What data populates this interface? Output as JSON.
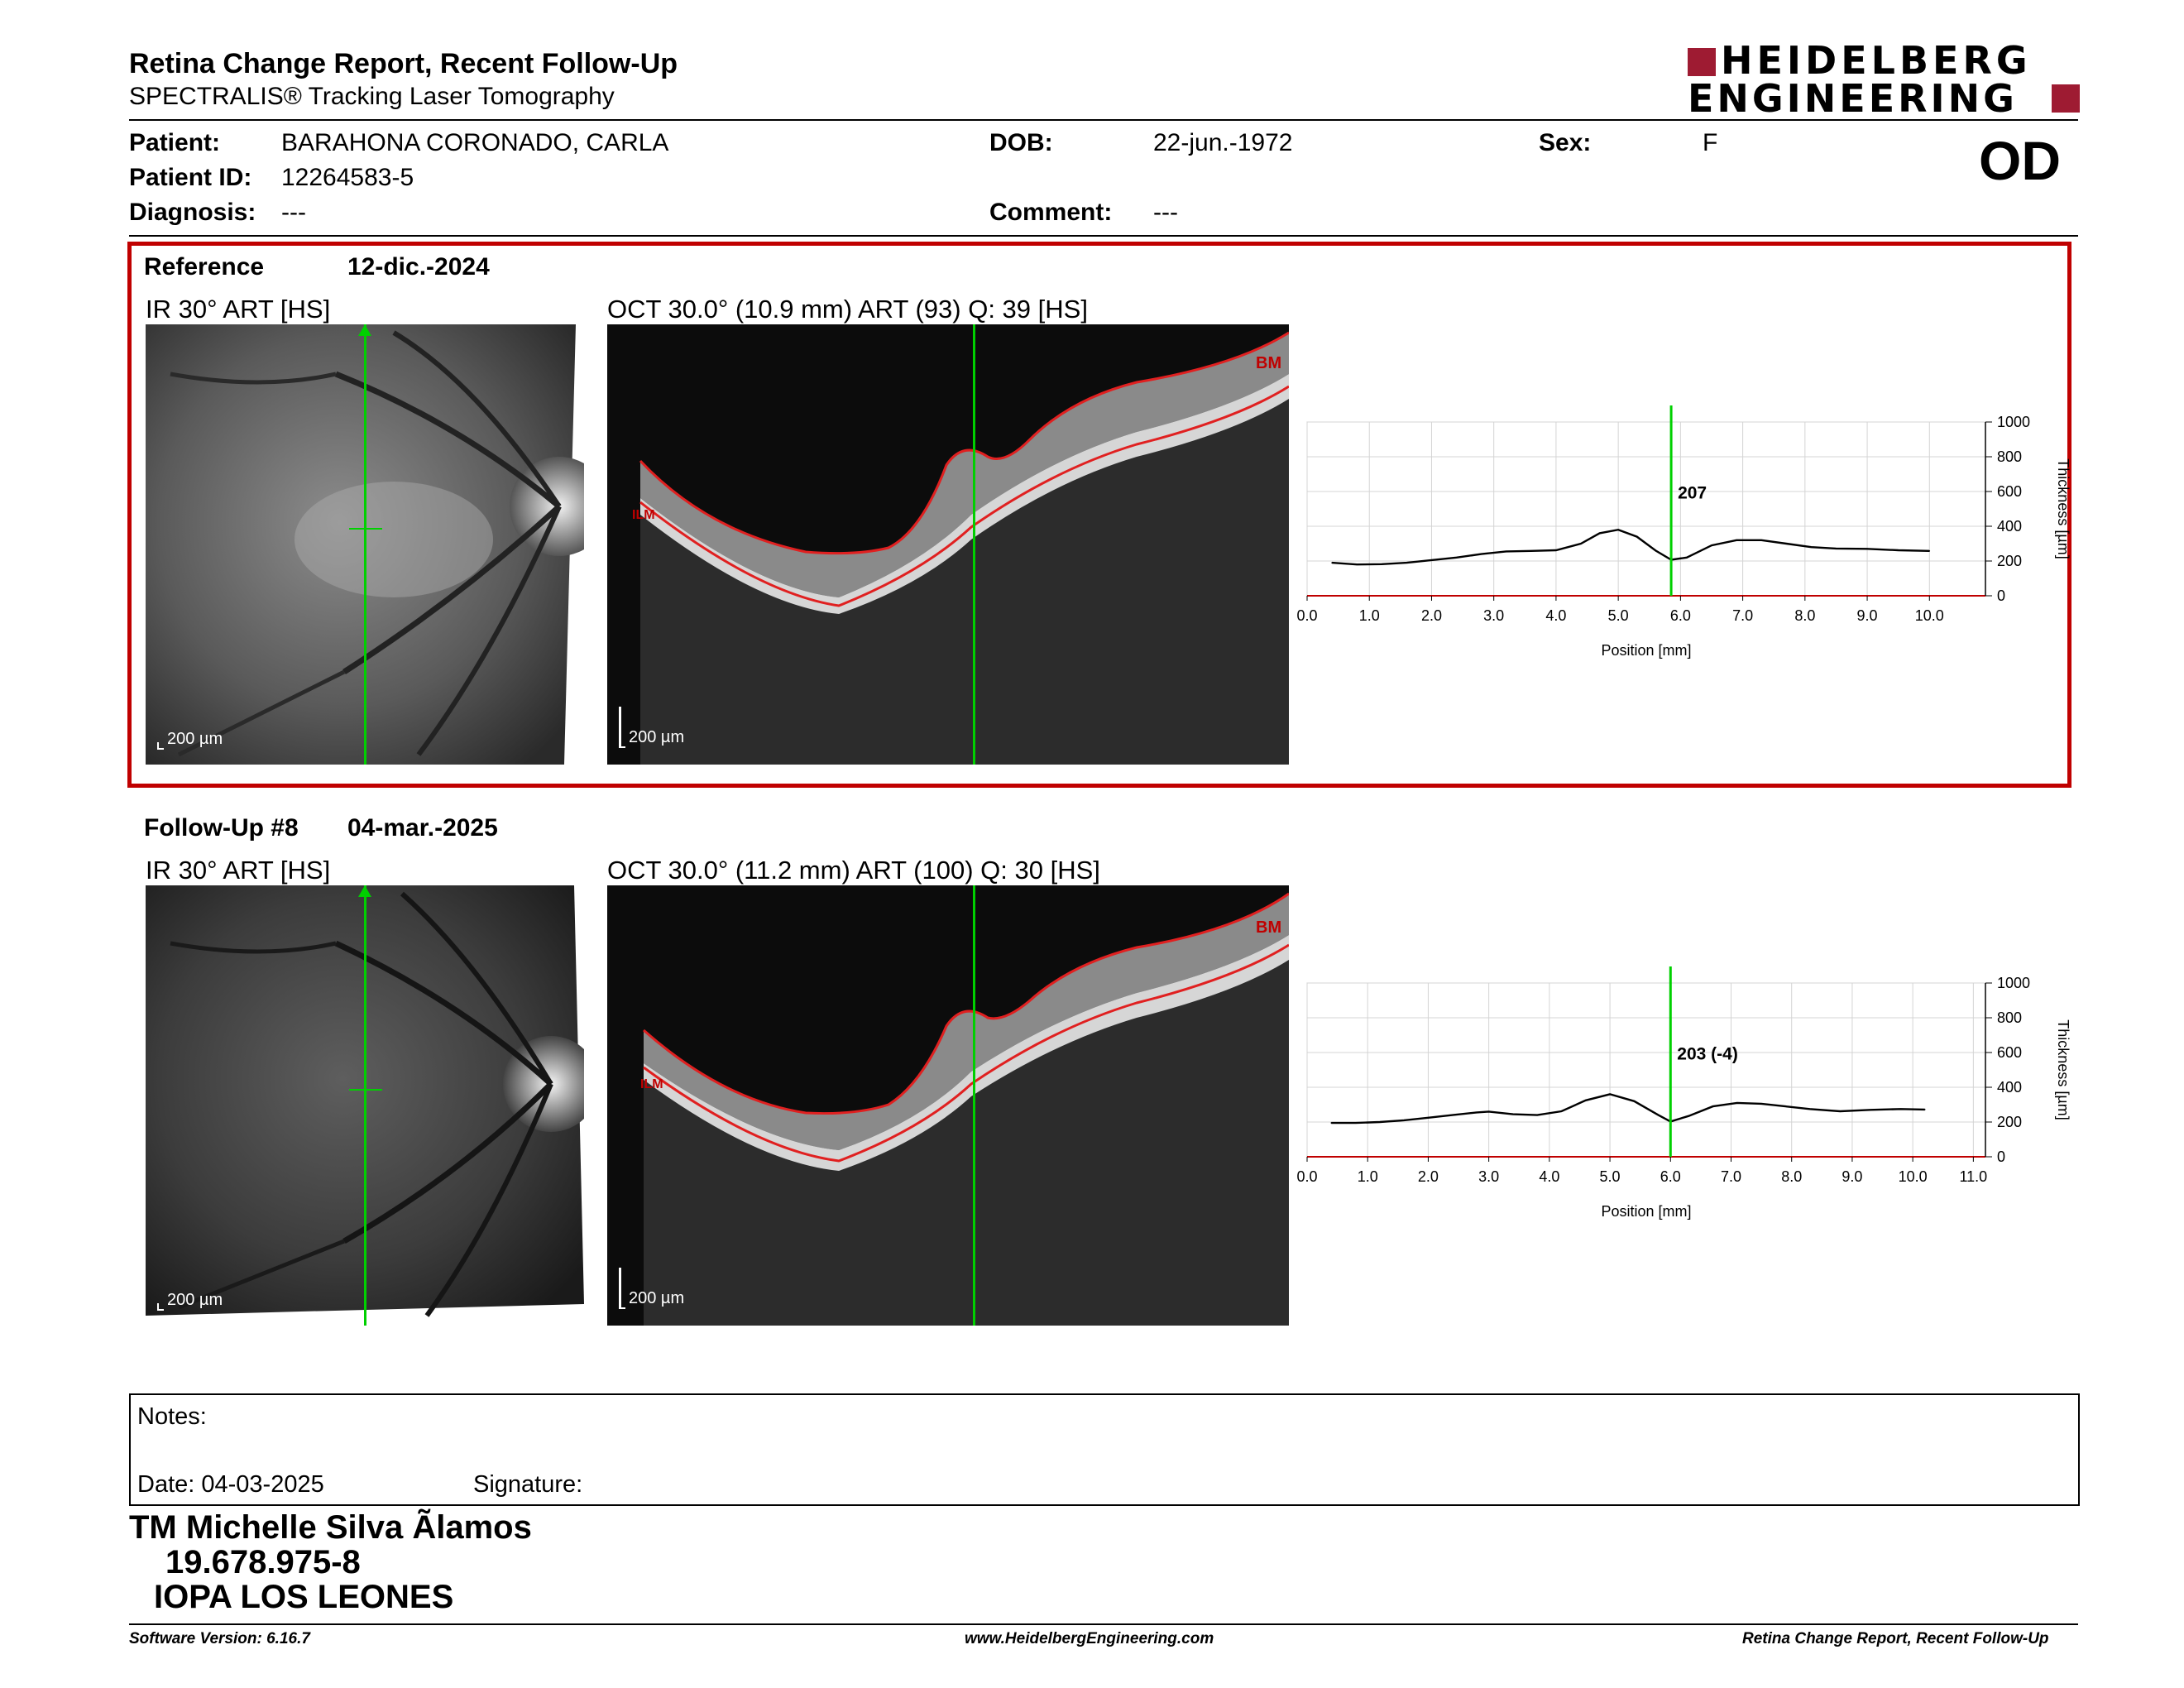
{
  "header": {
    "title": "Retina Change Report, Recent Follow-Up",
    "subtitle": "SPECTRALIS® Tracking Laser Tomography",
    "logo_line1": "HEIDELBERG",
    "logo_line2": "ENGINEERING",
    "eye": "OD"
  },
  "patient": {
    "patient_label": "Patient:",
    "patient_name": "BARAHONA CORONADO, CARLA",
    "id_label": "Patient ID:",
    "id": "12264583-5",
    "diagnosis_label": "Diagnosis:",
    "diagnosis": "---",
    "dob_label": "DOB:",
    "dob": "22-jun.-1972",
    "comment_label": "Comment:",
    "comment": "---",
    "sex_label": "Sex:",
    "sex": "F"
  },
  "reference": {
    "label": "Reference",
    "date": "12-dic.-2024",
    "ir_title": "IR 30° ART [HS]",
    "oct_title": "OCT 30.0° (10.9 mm) ART (93) Q: 39 [HS]",
    "ir_scale": "200 µm",
    "oct_scale": "200 µm",
    "bm_label": "BM",
    "ilm_label": "ILM"
  },
  "followup": {
    "label": "Follow-Up #8",
    "date": "04-mar.-2025",
    "ir_title": "IR 30° ART [HS]",
    "oct_title": "OCT 30.0° (11.2 mm) ART (100) Q: 30 [HS]",
    "ir_scale": "200 µm",
    "oct_scale": "200 µm",
    "bm_label": "BM",
    "ilm_label": "ILM"
  },
  "chart_data": [
    {
      "type": "line",
      "xlabel": "Position [mm]",
      "ylabel": "Thickness [µm]",
      "xlim": [
        0,
        10.9
      ],
      "ylim": [
        0,
        1000
      ],
      "xticks": [
        "0.0",
        "1.0",
        "2.0",
        "3.0",
        "4.0",
        "5.0",
        "6.0",
        "7.0",
        "8.0",
        "9.0",
        "10.0"
      ],
      "yticks": [
        "0",
        "200",
        "400",
        "600",
        "800",
        "1000"
      ],
      "cursor_x": 5.85,
      "cursor_label": "207",
      "series": [
        {
          "x": [
            0.4,
            0.8,
            1.2,
            1.6,
            2.0,
            2.4,
            2.8,
            3.2,
            3.6,
            4.0,
            4.4,
            4.7,
            5.0,
            5.3,
            5.6,
            5.85,
            6.1,
            6.5,
            6.9,
            7.3,
            7.7,
            8.1,
            8.5,
            9.0,
            9.5,
            10.0
          ],
          "values": [
            190,
            180,
            182,
            190,
            205,
            220,
            240,
            255,
            258,
            262,
            300,
            360,
            380,
            340,
            260,
            207,
            220,
            290,
            320,
            320,
            300,
            280,
            272,
            270,
            262,
            258
          ]
        }
      ]
    },
    {
      "type": "line",
      "xlabel": "Position [mm]",
      "ylabel": "Thickness [µm]",
      "xlim": [
        0,
        11.2
      ],
      "ylim": [
        0,
        1000
      ],
      "xticks": [
        "0.0",
        "1.0",
        "2.0",
        "3.0",
        "4.0",
        "5.0",
        "6.0",
        "7.0",
        "8.0",
        "9.0",
        "10.0",
        "11.0"
      ],
      "yticks": [
        "0",
        "200",
        "400",
        "600",
        "800",
        "1000"
      ],
      "cursor_x": 6.0,
      "cursor_label": "203 (-4)",
      "series": [
        {
          "x": [
            0.4,
            0.8,
            1.2,
            1.6,
            2.0,
            2.4,
            2.8,
            3.0,
            3.4,
            3.8,
            4.2,
            4.6,
            5.0,
            5.4,
            5.8,
            6.0,
            6.3,
            6.7,
            7.1,
            7.5,
            7.9,
            8.3,
            8.8,
            9.3,
            9.8,
            10.2
          ],
          "values": [
            195,
            195,
            200,
            210,
            225,
            240,
            255,
            260,
            245,
            240,
            262,
            325,
            360,
            320,
            240,
            203,
            235,
            290,
            310,
            305,
            290,
            275,
            262,
            270,
            275,
            272
          ]
        }
      ]
    }
  ],
  "notes": {
    "label": "Notes:",
    "date_label": "Date: 04-03-2025",
    "signature_label": "Signature:"
  },
  "signer": {
    "name": "TM Michelle Silva Ãlamos",
    "rut": "19.678.975-8",
    "institution": "IOPA LOS LEONES"
  },
  "footer": {
    "software": "Software Version: 6.16.7",
    "website": "www.HeidelbergEngineering.com",
    "report": "Retina Change Report, Recent Follow-Up"
  },
  "colors": {
    "frame_red": "#c00000",
    "cursor_green": "#00d000",
    "brand_red": "#9e1b32"
  }
}
